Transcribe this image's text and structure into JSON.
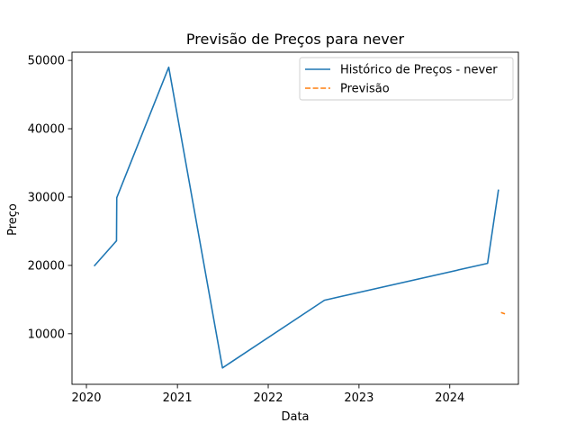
{
  "chart_data": {
    "type": "line",
    "title": "Previsão de Preços para never",
    "xlabel": "Data",
    "ylabel": "Preço",
    "x_axis_type": "date",
    "xlim": [
      "2019-11-04",
      "2024-10-03"
    ],
    "ylim": [
      2600,
      51200
    ],
    "x_ticks": [
      {
        "date": "2020-01-01",
        "label": "2020"
      },
      {
        "date": "2021-01-01",
        "label": "2021"
      },
      {
        "date": "2022-01-01",
        "label": "2022"
      },
      {
        "date": "2023-01-01",
        "label": "2023"
      },
      {
        "date": "2024-01-01",
        "label": "2024"
      }
    ],
    "y_ticks": [
      {
        "value": 10000,
        "label": "10000"
      },
      {
        "value": 20000,
        "label": "20000"
      },
      {
        "value": 30000,
        "label": "30000"
      },
      {
        "value": 40000,
        "label": "40000"
      },
      {
        "value": 50000,
        "label": "50000"
      }
    ],
    "grid": false,
    "legend_position": "top-right",
    "series": [
      {
        "name": "Histórico de Preços - never",
        "color": "#1f77b4",
        "style": "solid",
        "points": [
          {
            "x": "2020-02-01",
            "y": 19900
          },
          {
            "x": "2020-05-01",
            "y": 23600
          },
          {
            "x": "2020-05-02",
            "y": 29900
          },
          {
            "x": "2020-11-27",
            "y": 49000
          },
          {
            "x": "2021-07-01",
            "y": 5000
          },
          {
            "x": "2022-08-15",
            "y": 14900
          },
          {
            "x": "2024-06-01",
            "y": 20300
          },
          {
            "x": "2024-07-15",
            "y": 31100
          }
        ]
      },
      {
        "name": "Previsão",
        "color": "#ff7f0e",
        "style": "dashed",
        "points": [
          {
            "x": "2024-07-25",
            "y": 13100
          },
          {
            "x": "2024-08-10",
            "y": 12900
          }
        ]
      }
    ]
  }
}
